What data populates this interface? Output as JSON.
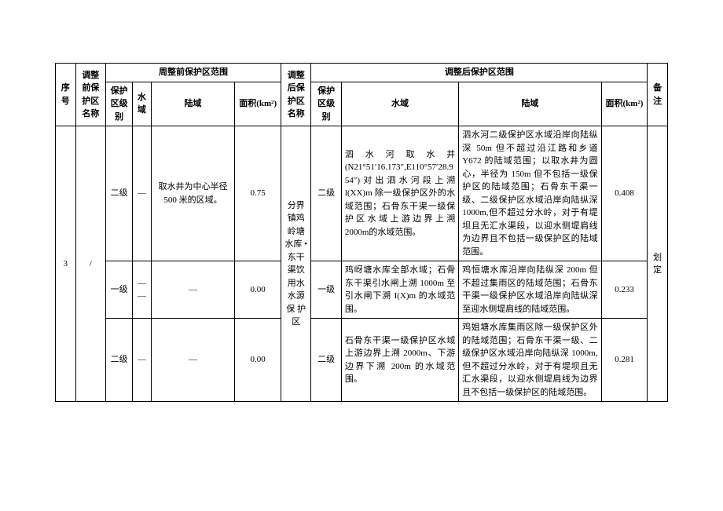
{
  "header": {
    "seq": "序号",
    "pre_name": "调整前保护区名称",
    "pre_group": "周整前保护区范围",
    "pre_level": "保护区级别",
    "pre_water": "水域",
    "pre_land": "陆域",
    "pre_area": "面积(km²)",
    "post_name": "调整后保护区名称",
    "post_group": "调整后保护区范围",
    "post_level": "保护区级别",
    "post_water": "水域",
    "post_land": "陆域",
    "post_area": "面积(km²)",
    "note": "备注"
  },
  "rows": [
    {
      "pre_level": "二级",
      "pre_water": "—",
      "pre_land": "取水井为中心半径 500 米的区域。",
      "pre_area": "0.75",
      "post_level": "二级",
      "post_water": "泗 水 河 取 水 井 (N21°51′16.173″,E110°57′28.954″)对出泗水河段上溯 l(XX)m 除一级保护区外的水域范围；石骨东干渠一级保护区水域上游边界上溯 2000m的水域范围。",
      "post_land": "泗水河二级保护区水域沿岸向陆纵深 50m 但不超过沿江路和乡道 Y672 的陆域范围；以取水井为圆心，半径为 150m 但不包括一级保护区的陆域范围；石骨东干渠一级、二级保护区水域沿岸向陆纵深 1000m,但不超过分水岭，对于有堤坝且无汇水渠段，以迎水侧堤肩线为边界且不包括一级保护区的陆域范围。",
      "post_area": "0.408"
    },
    {
      "seq": "3",
      "pre_name": "/",
      "pre_level": "一级",
      "pre_water": "——",
      "pre_land": "—",
      "pre_area": "0.00",
      "post_name": "分界镇鸡岭塘水库 • 东干渠饮用水水源保 护 区",
      "post_level": "一级",
      "post_water": "鸡岈塘水库全部水域；石骨东干渠引水闸上溯 1000m 至引水闸下溯 I(X)m 的水域范围。",
      "post_land": "鸡恒塘水库沿岸向陆纵深 200m 但不超过集雨区的陆域范围；石骨东干渠一级保护区水域沿岸向陆纵深至迎水侧堤肩线的陆域范围。",
      "post_area": "0.233",
      "note": "划定"
    },
    {
      "pre_level": "二级",
      "pre_water": "—",
      "pre_land": "—",
      "pre_area": "0.00",
      "post_level": "二级",
      "post_water": "石骨东干渠一级保护区水域上游边界上溯 2000m、下游边界下溯 200m 的水域范围。",
      "post_land": "鸡姐塘水库集雨区除一级保护区外的陆域范围；石骨东干渠一级、二级保护区水域沿岸向陆纵深 1000m,但不超过分水岭，对于有堤坝且无汇水渠段，以迎水侧堤肩线为边界且不包括一级保护区的陆域范围。",
      "post_area": "0.281"
    }
  ]
}
